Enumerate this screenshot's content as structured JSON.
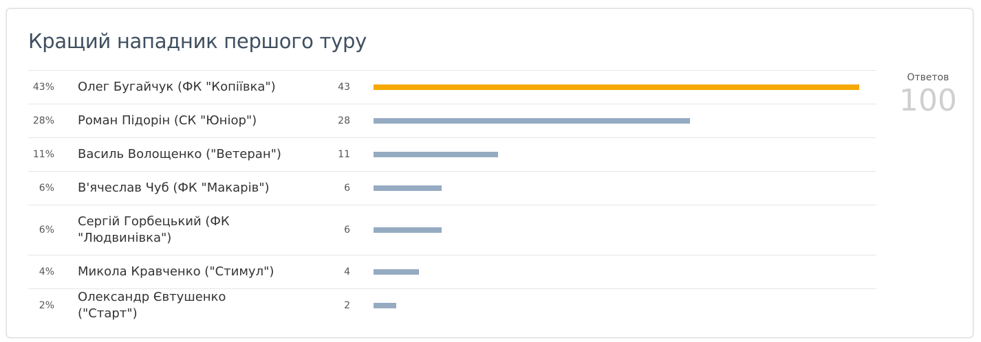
{
  "poll": {
    "title": "Кращий нападник першого туру",
    "total_label": "Ответов",
    "total_value": "100"
  },
  "colors": {
    "leader": "#f5a800",
    "bar": "#95abc2"
  },
  "chart_data": {
    "type": "bar",
    "orientation": "horizontal",
    "title": "Кращий нападник першого туру",
    "categories": [
      "Олег Бугайчук (ФК \"Копіївка\")",
      "Роман Підорін (СК \"Юніор\")",
      "Василь Волощенко (\"Ветеран\")",
      "В'ячеслав Чуб (ФК \"Макарів\")",
      "Сергій Горбецький (ФК \"Людвинівка\")",
      "Микола Кравченко (\"Стимул\")",
      "Олександр Євтушенко (\"Старт\")"
    ],
    "values": [
      43,
      28,
      11,
      6,
      6,
      4,
      2
    ],
    "percent_labels": [
      "43%",
      "28%",
      "11%",
      "6%",
      "6%",
      "4%",
      "2%"
    ],
    "total": 100
  }
}
